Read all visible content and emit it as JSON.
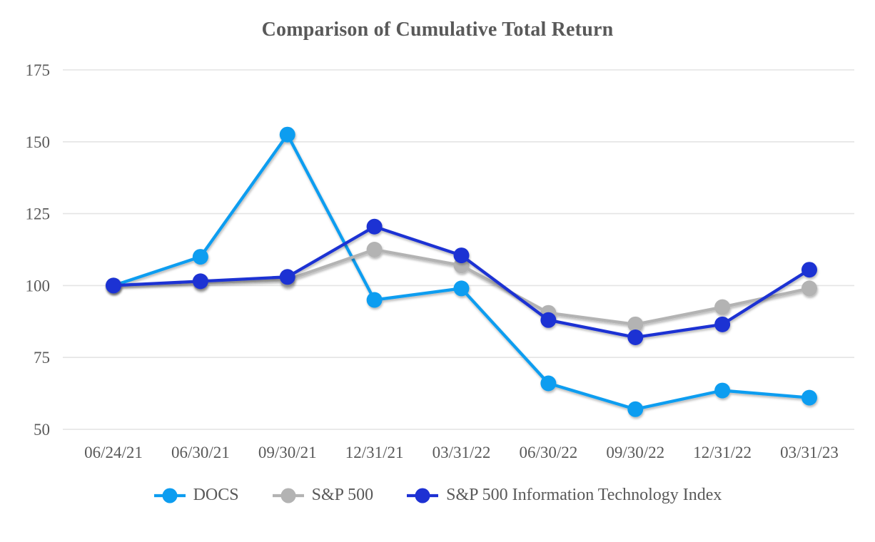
{
  "chart_data": {
    "type": "line",
    "title": "Comparison of Cumulative Total Return",
    "categories": [
      "06/24/21",
      "06/30/21",
      "09/30/21",
      "12/31/21",
      "03/31/22",
      "06/30/22",
      "09/30/22",
      "12/31/22",
      "03/31/23"
    ],
    "series": [
      {
        "name": "DOCS",
        "color": "#0D9DF0",
        "values": [
          100,
          110,
          152.5,
          95,
          99,
          66,
          57,
          63.5,
          61
        ]
      },
      {
        "name": "S&P 500",
        "color": "#B3B3B3",
        "values": [
          100,
          101,
          102,
          112.5,
          107,
          90.5,
          86.5,
          92.5,
          99
        ]
      },
      {
        "name": "S&P 500 Information Technology Index",
        "color": "#1E31D3",
        "values": [
          100,
          101.5,
          103,
          120.5,
          110.5,
          88,
          82,
          86.5,
          105.5
        ]
      }
    ],
    "ylim": [
      50,
      175
    ],
    "yticks": [
      175,
      150,
      125,
      100,
      75,
      50
    ],
    "grid": "horizontal-only",
    "grid_color": "#E4E4E4",
    "axis_text_color": "#595959",
    "legend_position": "bottom",
    "marker": "circle"
  }
}
